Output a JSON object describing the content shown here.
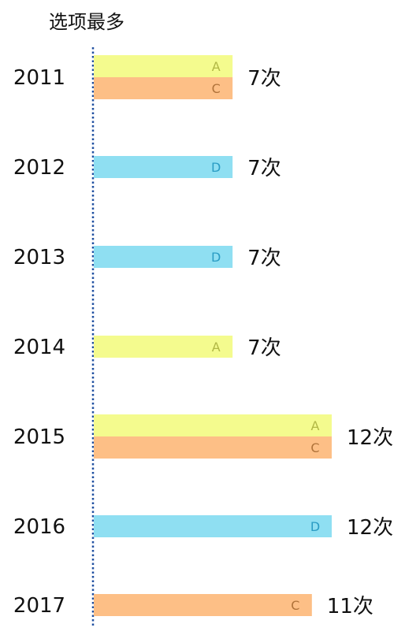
{
  "chart_data": {
    "type": "bar",
    "title": "选项最多",
    "xlabel": "",
    "ylabel": "",
    "categories": [
      "2011",
      "2012",
      "2013",
      "2014",
      "2015",
      "2016",
      "2017"
    ],
    "rows": [
      {
        "year": "2011",
        "value": 7,
        "label": "7次",
        "options": [
          "A",
          "C"
        ]
      },
      {
        "year": "2012",
        "value": 7,
        "label": "7次",
        "options": [
          "D"
        ]
      },
      {
        "year": "2013",
        "value": 7,
        "label": "7次",
        "options": [
          "D"
        ]
      },
      {
        "year": "2014",
        "value": 7,
        "label": "7次",
        "options": [
          "A"
        ]
      },
      {
        "year": "2015",
        "value": 12,
        "label": "12次",
        "options": [
          "A",
          "C"
        ]
      },
      {
        "year": "2016",
        "value": 12,
        "label": "12次",
        "options": [
          "D"
        ]
      },
      {
        "year": "2017",
        "value": 11,
        "label": "11次",
        "options": [
          "C"
        ]
      }
    ],
    "xlim": [
      0,
      12
    ],
    "colors": {
      "A": {
        "fill": "#f4fb8e",
        "text": "#b2b845"
      },
      "C": {
        "fill": "#fdbf86",
        "text": "#b0733a"
      },
      "D": {
        "fill": "#8fdff2",
        "text": "#2a9cc4"
      },
      "axis": "#1f4fa0"
    }
  }
}
